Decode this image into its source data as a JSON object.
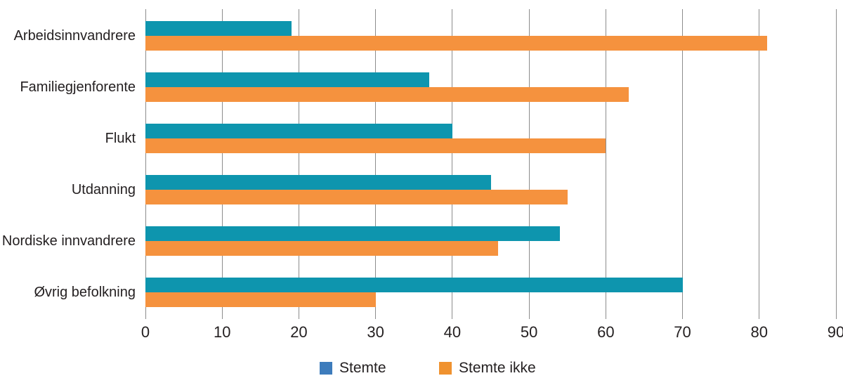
{
  "chart_data": {
    "type": "bar",
    "orientation": "horizontal",
    "title": "",
    "xlabel": "",
    "ylabel": "",
    "categories": [
      "Arbeidsinnvandrere",
      "Familiegjenforente",
      "Flukt",
      "Utdanning",
      "Nordiske innvandrere",
      "Øvrig befolkning"
    ],
    "series": [
      {
        "name": "Stemte",
        "color": "#0e95ae",
        "legend_color": "#3d7cbc",
        "values": [
          19,
          37,
          40,
          45,
          54,
          70
        ]
      },
      {
        "name": "Stemte ikke",
        "color": "#f5923e",
        "legend_color": "#f0922f",
        "values": [
          81,
          63,
          60,
          55,
          46,
          30
        ]
      }
    ],
    "xlim": [
      0,
      90
    ],
    "x_ticks": [
      0,
      10,
      20,
      30,
      40,
      50,
      60,
      70,
      80,
      90
    ],
    "grid": "vertical-gridlines",
    "gridline_color": "#8c8c8c",
    "text_color": "#231f20",
    "background": "#ffffff",
    "legend_position": "bottom-center"
  }
}
